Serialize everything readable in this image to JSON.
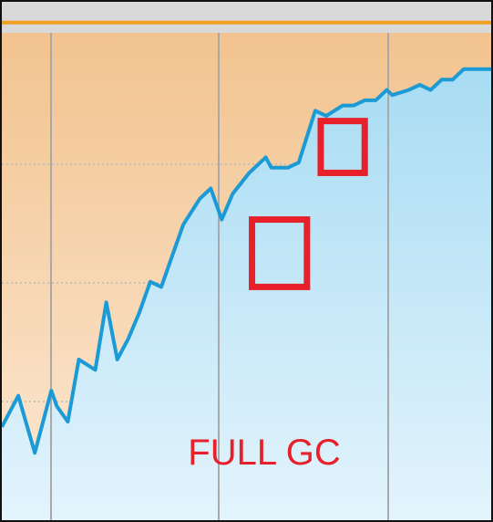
{
  "chart_data": {
    "type": "area",
    "title": "",
    "xlabel": "",
    "ylabel": "",
    "grid": true,
    "x": [
      0,
      3,
      6,
      9,
      10,
      12,
      14,
      17,
      19,
      21,
      22,
      23,
      25,
      27,
      29,
      31,
      33,
      36,
      38,
      40,
      42,
      45,
      48,
      49,
      51,
      52,
      54,
      57,
      59,
      62,
      64,
      66,
      68,
      70,
      71,
      74,
      76,
      78,
      80,
      82,
      84,
      86,
      87,
      89
    ],
    "ylim": [
      0,
      100
    ],
    "xlim": [
      0,
      89
    ],
    "series": [
      {
        "values": [
          18,
          24,
          13,
          25,
          22,
          19,
          31,
          29,
          42,
          31,
          33,
          35,
          40,
          46,
          45,
          51,
          57,
          62,
          64,
          58,
          63,
          67,
          70,
          68,
          68,
          68,
          69,
          79,
          78,
          80,
          80,
          81,
          81,
          83,
          82,
          83,
          84,
          83,
          85,
          85,
          87,
          87,
          87,
          87
        ],
        "color": "#1b9ad6"
      }
    ],
    "limit_line": {
      "value": 96,
      "color": "#f0a020"
    },
    "highlight_boxes": [
      {
        "x_range": [
          45.5,
          55.5
        ],
        "y_range": [
          45,
          58
        ]
      },
      {
        "x_range": [
          58,
          66
        ],
        "y_range": [
          67,
          77
        ]
      }
    ],
    "annotation": {
      "text": "FULL GC",
      "color": "#e8202a"
    },
    "colors": {
      "upper_fill_top": "#f2c38f",
      "upper_fill_bottom": "#fce9d4",
      "area_fill_top": "#a8dcf3",
      "area_fill_bottom": "#e3f4fc",
      "highlight": "#e8202a",
      "header": "#d9d9d9"
    }
  }
}
